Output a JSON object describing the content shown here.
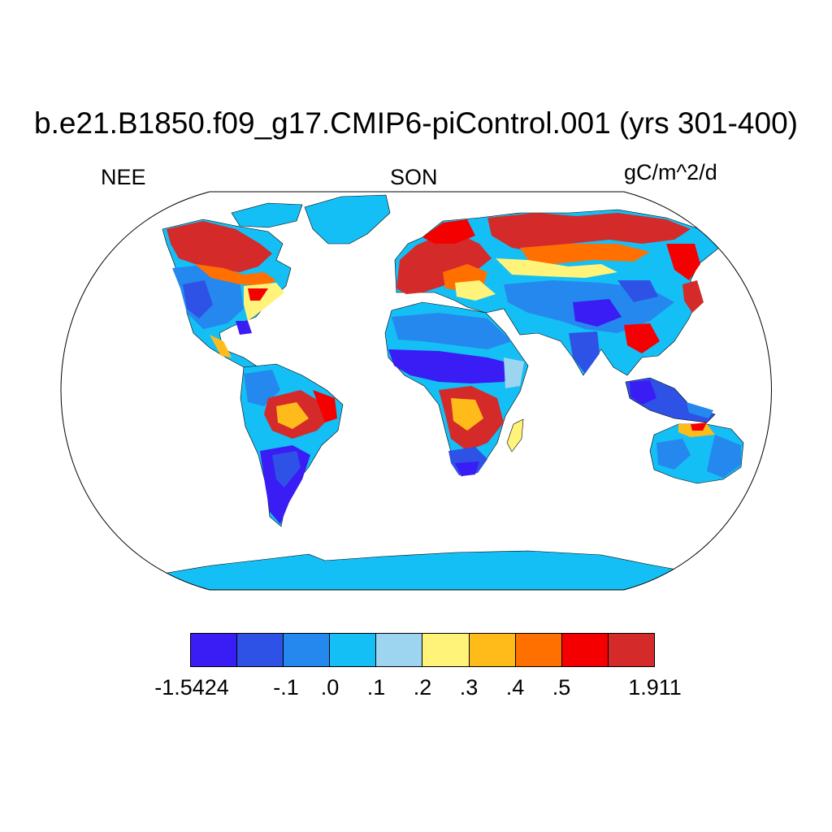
{
  "title": "b.e21.B1850.f09_g17.CMIP6-piControl.001 (yrs 301-400)",
  "left_label": "NEE",
  "center_label": "SON",
  "right_label": "gC/m^2/d",
  "colorbar": {
    "colors": [
      "#3a1cf5",
      "#2e52e6",
      "#2588ee",
      "#14bff5",
      "#9dd5f0",
      "#fff37a",
      "#ffbb1a",
      "#ff7000",
      "#f50000",
      "#d42a2a"
    ],
    "labels": [
      "-1.5424",
      "-.1",
      ".0",
      ".1",
      ".2",
      ".3",
      ".4",
      ".5",
      "1.911"
    ]
  },
  "map": {
    "projection": "Robinson",
    "variable": "NEE",
    "season": "SON",
    "land_base_color": "#14bff5"
  }
}
